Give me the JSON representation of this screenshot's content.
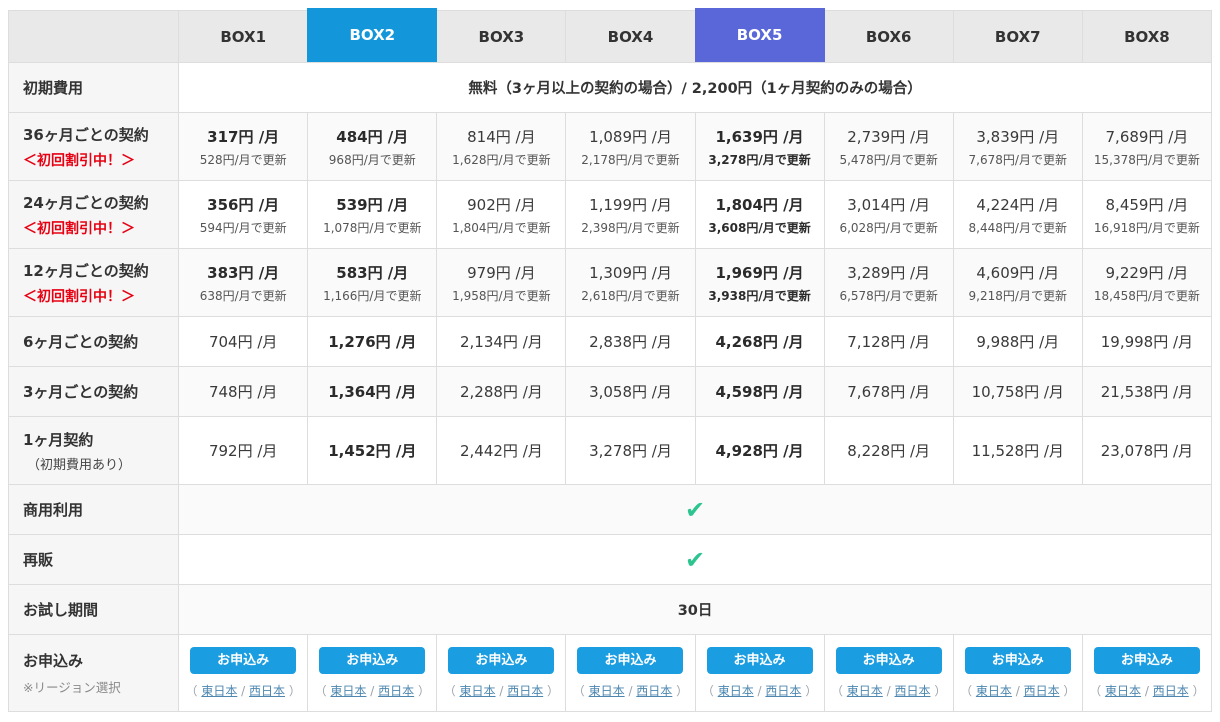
{
  "icons": {
    "check": "✔"
  },
  "colors": {
    "header_bg": "#e9e9e9",
    "box2_highlight_blue": "#1496db",
    "box5_highlight_purple": "#5a67d8",
    "button_blue": "#1b9de2",
    "check_green": "#2ec48f",
    "discount_red": "#e60012",
    "border": "#dddddd"
  },
  "header": {
    "columns": [
      {
        "label": "BOX1",
        "highlight": null
      },
      {
        "label": "BOX2",
        "highlight": "blue"
      },
      {
        "label": "BOX3",
        "highlight": null
      },
      {
        "label": "BOX4",
        "highlight": null
      },
      {
        "label": "BOX5",
        "highlight": "purple"
      },
      {
        "label": "BOX6",
        "highlight": null
      },
      {
        "label": "BOX7",
        "highlight": null
      },
      {
        "label": "BOX8",
        "highlight": null
      }
    ]
  },
  "rows": [
    {
      "id": "initial-cost",
      "type": "span",
      "size": "sm",
      "alt": false,
      "label": "初期費用",
      "sublabel": null,
      "value": "無料（3ヶ月以上の契約の場合）/ 2,200円（1ヶ月契約のみの場合）"
    },
    {
      "id": "contract-36m",
      "type": "prices",
      "size": "lg",
      "alt": true,
      "label": "36ヶ月ごとの契約",
      "sublabel": "＜初回割引中！＞",
      "sublabel_style": "red",
      "cells": [
        {
          "price": "317円 /月",
          "renew": "528円/月で更新",
          "bold_price": true,
          "bold_renew": false
        },
        {
          "price": "484円 /月",
          "renew": "968円/月で更新",
          "bold_price": true,
          "bold_renew": false
        },
        {
          "price": "814円 /月",
          "renew": "1,628円/月で更新",
          "bold_price": false,
          "bold_renew": false
        },
        {
          "price": "1,089円 /月",
          "renew": "2,178円/月で更新",
          "bold_price": false,
          "bold_renew": false
        },
        {
          "price": "1,639円 /月",
          "renew": "3,278円/月で更新",
          "bold_price": true,
          "bold_renew": true
        },
        {
          "price": "2,739円 /月",
          "renew": "5,478円/月で更新",
          "bold_price": false,
          "bold_renew": false
        },
        {
          "price": "3,839円 /月",
          "renew": "7,678円/月で更新",
          "bold_price": false,
          "bold_renew": false
        },
        {
          "price": "7,689円 /月",
          "renew": "15,378円/月で更新",
          "bold_price": false,
          "bold_renew": false
        }
      ]
    },
    {
      "id": "contract-24m",
      "type": "prices",
      "size": "lg",
      "alt": false,
      "label": "24ヶ月ごとの契約",
      "sublabel": "＜初回割引中！＞",
      "sublabel_style": "red",
      "cells": [
        {
          "price": "356円 /月",
          "renew": "594円/月で更新",
          "bold_price": true,
          "bold_renew": false
        },
        {
          "price": "539円 /月",
          "renew": "1,078円/月で更新",
          "bold_price": true,
          "bold_renew": false
        },
        {
          "price": "902円 /月",
          "renew": "1,804円/月で更新",
          "bold_price": false,
          "bold_renew": false
        },
        {
          "price": "1,199円 /月",
          "renew": "2,398円/月で更新",
          "bold_price": false,
          "bold_renew": false
        },
        {
          "price": "1,804円 /月",
          "renew": "3,608円/月で更新",
          "bold_price": true,
          "bold_renew": true
        },
        {
          "price": "3,014円 /月",
          "renew": "6,028円/月で更新",
          "bold_price": false,
          "bold_renew": false
        },
        {
          "price": "4,224円 /月",
          "renew": "8,448円/月で更新",
          "bold_price": false,
          "bold_renew": false
        },
        {
          "price": "8,459円 /月",
          "renew": "16,918円/月で更新",
          "bold_price": false,
          "bold_renew": false
        }
      ]
    },
    {
      "id": "contract-12m",
      "type": "prices",
      "size": "lg",
      "alt": true,
      "label": "12ヶ月ごとの契約",
      "sublabel": "＜初回割引中！＞",
      "sublabel_style": "red",
      "cells": [
        {
          "price": "383円 /月",
          "renew": "638円/月で更新",
          "bold_price": true,
          "bold_renew": false
        },
        {
          "price": "583円 /月",
          "renew": "1,166円/月で更新",
          "bold_price": true,
          "bold_renew": false
        },
        {
          "price": "979円 /月",
          "renew": "1,958円/月で更新",
          "bold_price": false,
          "bold_renew": false
        },
        {
          "price": "1,309円 /月",
          "renew": "2,618円/月で更新",
          "bold_price": false,
          "bold_renew": false
        },
        {
          "price": "1,969円 /月",
          "renew": "3,938円/月で更新",
          "bold_price": true,
          "bold_renew": true
        },
        {
          "price": "3,289円 /月",
          "renew": "6,578円/月で更新",
          "bold_price": false,
          "bold_renew": false
        },
        {
          "price": "4,609円 /月",
          "renew": "9,218円/月で更新",
          "bold_price": false,
          "bold_renew": false
        },
        {
          "price": "9,229円 /月",
          "renew": "18,458円/月で更新",
          "bold_price": false,
          "bold_renew": false
        }
      ]
    },
    {
      "id": "contract-6m",
      "type": "prices",
      "size": "sm",
      "alt": false,
      "label": "6ヶ月ごとの契約",
      "sublabel": null,
      "cells": [
        {
          "price": "704円 /月",
          "bold_price": false
        },
        {
          "price": "1,276円 /月",
          "bold_price": true
        },
        {
          "price": "2,134円 /月",
          "bold_price": false
        },
        {
          "price": "2,838円 /月",
          "bold_price": false
        },
        {
          "price": "4,268円 /月",
          "bold_price": true
        },
        {
          "price": "7,128円 /月",
          "bold_price": false
        },
        {
          "price": "9,988円 /月",
          "bold_price": false
        },
        {
          "price": "19,998円 /月",
          "bold_price": false
        }
      ]
    },
    {
      "id": "contract-3m",
      "type": "prices",
      "size": "sm",
      "alt": true,
      "label": "3ヶ月ごとの契約",
      "sublabel": null,
      "cells": [
        {
          "price": "748円 /月",
          "bold_price": false
        },
        {
          "price": "1,364円 /月",
          "bold_price": true
        },
        {
          "price": "2,288円 /月",
          "bold_price": false
        },
        {
          "price": "3,058円 /月",
          "bold_price": false
        },
        {
          "price": "4,598円 /月",
          "bold_price": true
        },
        {
          "price": "7,678円 /月",
          "bold_price": false
        },
        {
          "price": "10,758円 /月",
          "bold_price": false
        },
        {
          "price": "21,538円 /月",
          "bold_price": false
        }
      ]
    },
    {
      "id": "contract-1m",
      "type": "prices",
      "size": "lg",
      "alt": false,
      "label": "1ヶ月契約",
      "sublabel": "（初期費用あり）",
      "sublabel_style": "gray",
      "cells": [
        {
          "price": "792円 /月",
          "bold_price": false
        },
        {
          "price": "1,452円 /月",
          "bold_price": true
        },
        {
          "price": "2,442円 /月",
          "bold_price": false
        },
        {
          "price": "3,278円 /月",
          "bold_price": false
        },
        {
          "price": "4,928円 /月",
          "bold_price": true
        },
        {
          "price": "8,228円 /月",
          "bold_price": false
        },
        {
          "price": "11,528円 /月",
          "bold_price": false
        },
        {
          "price": "23,078円 /月",
          "bold_price": false
        }
      ]
    },
    {
      "id": "commercial-use",
      "type": "check",
      "size": "sm",
      "alt": true,
      "label": "商用利用",
      "sublabel": null
    },
    {
      "id": "resale",
      "type": "check",
      "size": "sm",
      "alt": false,
      "label": "再販",
      "sublabel": null
    },
    {
      "id": "trial-period",
      "type": "span",
      "size": "sm",
      "alt": true,
      "label": "お試し期間",
      "sublabel": null,
      "value": "30日"
    },
    {
      "id": "apply",
      "type": "apply",
      "size": "xl",
      "alt": false,
      "label": "お申込み",
      "sublabel": "※リージョン選択",
      "sublabel_style": "note",
      "button_label": "お申込み",
      "region_open": "（ ",
      "region_east": "東日本",
      "region_sep": " / ",
      "region_west": "西日本",
      "region_close": " ）"
    }
  ]
}
